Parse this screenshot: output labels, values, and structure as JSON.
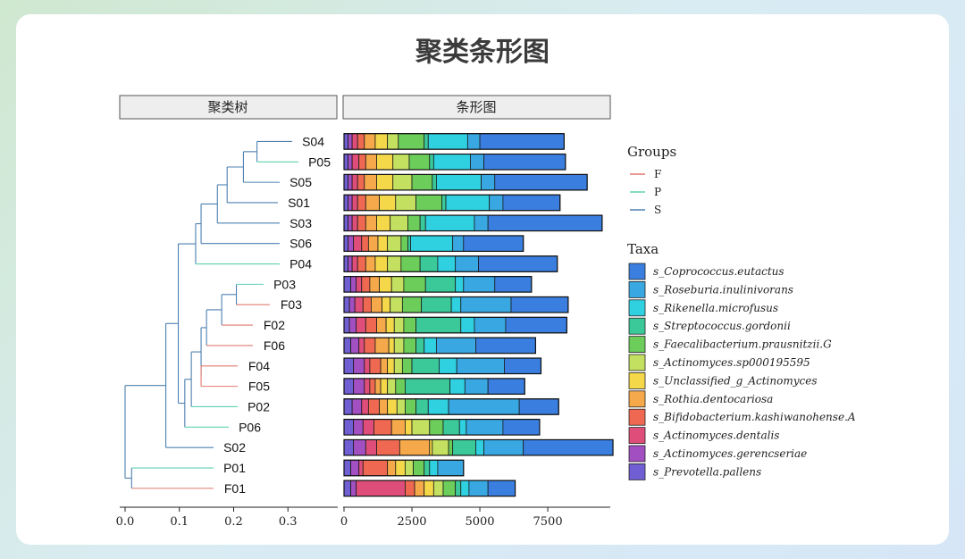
{
  "chart_data": {
    "type": "bar",
    "title": "聚类条形图",
    "panels": {
      "tree_label": "聚类树",
      "bar_label": "条形图"
    },
    "tree_axis": {
      "ticks": [
        "0.0",
        "0.1",
        "0.2",
        "0.3"
      ],
      "tick_values": [
        0.0,
        0.1,
        0.2,
        0.3
      ],
      "xlim": [
        0.0,
        0.4
      ]
    },
    "bar_axis": {
      "ticks": [
        "0",
        "2500",
        "5000",
        "7500"
      ],
      "tick_values": [
        0,
        2500,
        5000,
        7500
      ],
      "xlim": [
        0,
        9800
      ]
    },
    "samples": [
      "S04",
      "P05",
      "S05",
      "S01",
      "S03",
      "S06",
      "P04",
      "P03",
      "F03",
      "F02",
      "F06",
      "F04",
      "F05",
      "P02",
      "P06",
      "S02",
      "P01",
      "F01"
    ],
    "sample_group": {
      "S04": "S",
      "P05": "P",
      "S05": "S",
      "S01": "S",
      "S03": "S",
      "S06": "S",
      "P04": "P",
      "P03": "P",
      "F03": "F",
      "F02": "F",
      "F06": "F",
      "F04": "F",
      "F05": "F",
      "P02": "P",
      "P06": "P",
      "S02": "S",
      "P01": "P",
      "F01": "F"
    },
    "groups_legend": {
      "title": "Groups",
      "items": [
        {
          "label": "F",
          "color": "#e07a6e"
        },
        {
          "label": "P",
          "color": "#5ed0b0"
        },
        {
          "label": "S",
          "color": "#4d80b0"
        }
      ]
    },
    "taxa_legend": {
      "title": "Taxa",
      "items": [
        {
          "label": "s_Coprococcus.eutactus",
          "color": "#3a7fe0"
        },
        {
          "label": "s_Roseburia.inulinivorans",
          "color": "#39a8e2"
        },
        {
          "label": "s_Rikenella.microfusus",
          "color": "#2fd0e0"
        },
        {
          "label": "s_Streptococcus.gordonii",
          "color": "#3bc99a"
        },
        {
          "label": "s_Faecalibacterium.prausnitzii.G",
          "color": "#6ccd5a"
        },
        {
          "label": "s_Actinomyces.sp000195595",
          "color": "#c3e060"
        },
        {
          "label": "s_Unclassified_g_Actinomyces",
          "color": "#f5d84a"
        },
        {
          "label": "s_Rothia.dentocariosa",
          "color": "#f5a94b"
        },
        {
          "label": "s_Bifidobacterium.kashiwanohense.A",
          "color": "#ef6852"
        },
        {
          "label": "s_Actinomyces.dentalis",
          "color": "#df4e7b"
        },
        {
          "label": "s_Actinomyces.gerencseriae",
          "color": "#a24fc2"
        },
        {
          "label": "s_Prevotella.pallens",
          "color": "#6f5fd2"
        }
      ]
    },
    "stack_order_note_values": "each row lists segment values from left to right: Prevotella, gerencseriae, dentalis, Bifidobacterium, Rothia, Unclassified, sp000195595, Faecalibacterium, Streptococcus, Rikenella, Roseburia, Coprococcus",
    "series": [
      {
        "name": "s_Prevotella.pallens",
        "values": [
          150,
          150,
          150,
          150,
          150,
          150,
          150,
          250,
          200,
          200,
          250,
          350,
          350,
          300,
          350,
          350,
          250,
          250
        ]
      },
      {
        "name": "s_Actinomyces.gerencseriae",
        "values": [
          150,
          150,
          150,
          150,
          150,
          200,
          150,
          200,
          200,
          250,
          300,
          400,
          400,
          350,
          350,
          450,
          300,
          200
        ]
      },
      {
        "name": "s_Actinomyces.dentalis",
        "values": [
          200,
          250,
          200,
          200,
          200,
          300,
          200,
          200,
          300,
          350,
          200,
          200,
          200,
          250,
          400,
          400,
          150,
          1800
        ]
      },
      {
        "name": "s_Bifidobacterium.kashiwanohense.A",
        "values": [
          250,
          250,
          250,
          300,
          300,
          250,
          300,
          300,
          300,
          400,
          400,
          400,
          200,
          400,
          650,
          850,
          900,
          350
        ]
      },
      {
        "name": "s_Rothia.dentocariosa",
        "values": [
          400,
          400,
          450,
          500,
          400,
          350,
          350,
          350,
          400,
          350,
          500,
          250,
          200,
          300,
          500,
          1100,
          300,
          350
        ]
      },
      {
        "name": "s_Unclassified_g_Actinomyces",
        "values": [
          450,
          600,
          600,
          600,
          500,
          350,
          450,
          450,
          300,
          300,
          200,
          250,
          250,
          350,
          250,
          100,
          350,
          350
        ]
      },
      {
        "name": "s_Actinomyces.sp000195595",
        "values": [
          400,
          600,
          700,
          750,
          650,
          500,
          500,
          450,
          450,
          350,
          350,
          300,
          300,
          300,
          650,
          600,
          300,
          350
        ]
      },
      {
        "name": "s_Faecalibacterium.prausnitzii.G",
        "values": [
          950,
          750,
          750,
          950,
          450,
          250,
          700,
          800,
          700,
          450,
          450,
          350,
          350,
          400,
          500,
          150,
          400,
          450
        ]
      },
      {
        "name": "s_Streptococcus.gordonii",
        "values": [
          150,
          150,
          150,
          150,
          200,
          100,
          650,
          1100,
          1100,
          1650,
          300,
          1000,
          1650,
          450,
          600,
          850,
          200,
          200
        ]
      },
      {
        "name": "s_Rikenella.microfusus",
        "values": [
          1450,
          1350,
          1650,
          1600,
          1800,
          1550,
          650,
          300,
          350,
          500,
          450,
          650,
          550,
          750,
          250,
          300,
          300,
          300
        ]
      },
      {
        "name": "s_Roseburia.inulinivorans",
        "values": [
          450,
          500,
          500,
          500,
          500,
          400,
          850,
          1150,
          1850,
          1150,
          1450,
          1750,
          850,
          2600,
          1350,
          1450,
          950,
          700
        ]
      },
      {
        "name": "s_Coprococcus.eutactus",
        "values": [
          3100,
          3000,
          3400,
          2100,
          4200,
          2200,
          2900,
          1350,
          2100,
          2250,
          2200,
          1350,
          1350,
          1450,
          1350,
          3300,
          0,
          1000
        ]
      }
    ]
  }
}
